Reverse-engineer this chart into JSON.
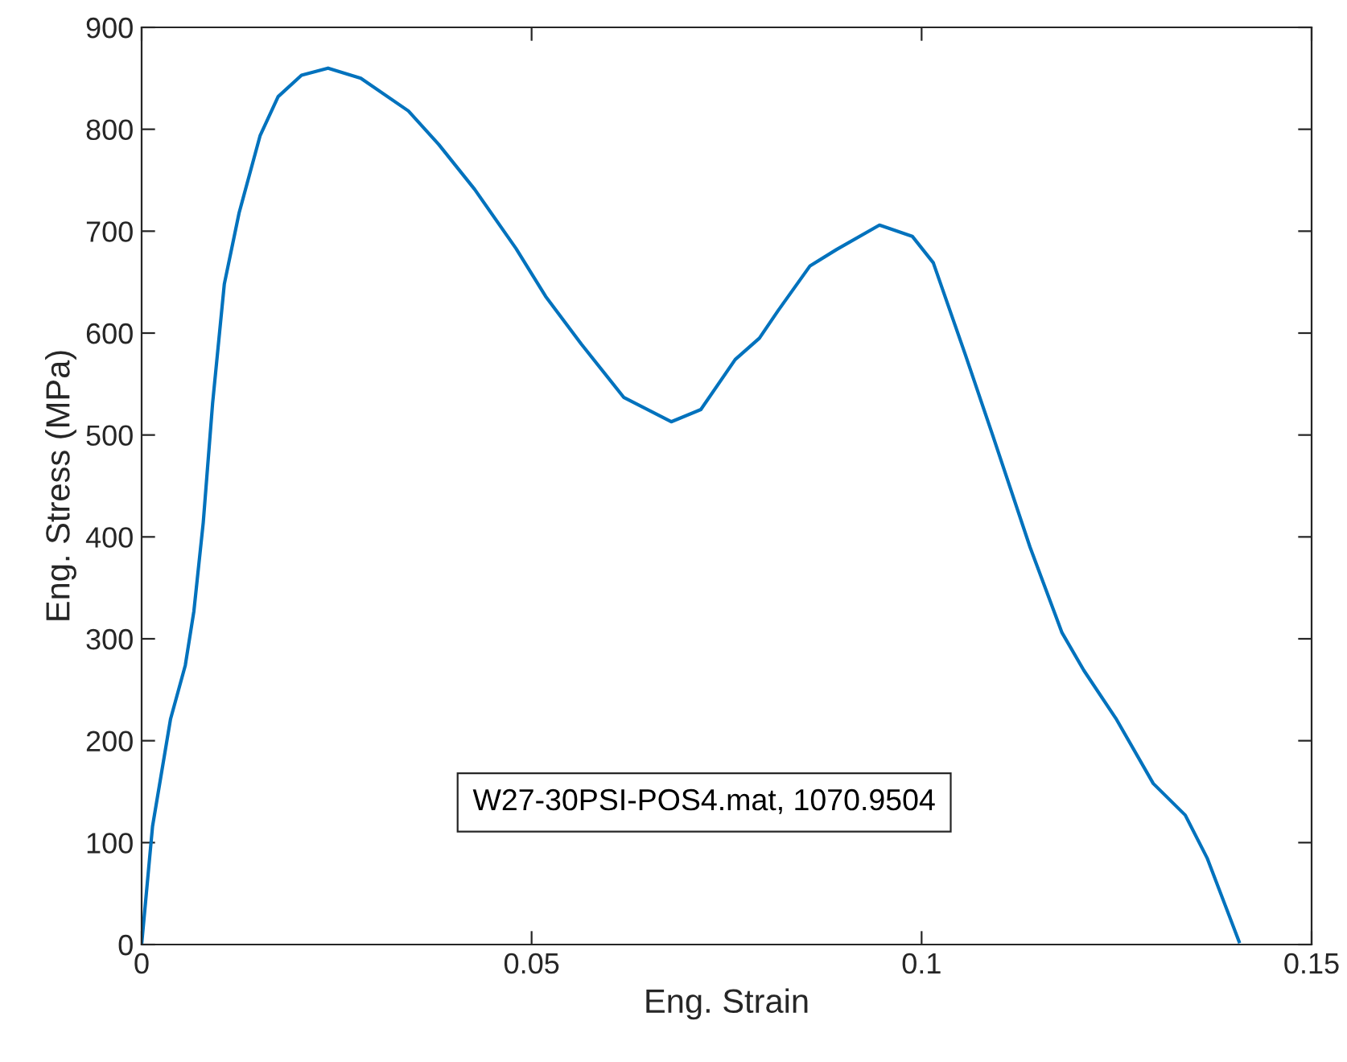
{
  "chart_data": {
    "type": "line",
    "xlabel": "Eng. Strain",
    "ylabel": "Eng. Stress (MPa)",
    "annotations": [
      "W27-30PSI-POS4.mat, 1070.9504"
    ],
    "xlim": [
      0,
      0.15
    ],
    "xticks": [
      0,
      0.05,
      0.1,
      0.15
    ],
    "ylim": [
      0,
      900
    ],
    "yticks": [
      0,
      100,
      200,
      300,
      400,
      500,
      600,
      700,
      800,
      900
    ],
    "grid": false,
    "legend": false,
    "marker": "none",
    "line_style": "solid",
    "series": [
      {
        "color": "#0072bd",
        "x": [
          0,
          0.0014,
          0.0037,
          0.0056,
          0.0067,
          0.0079,
          0.0091,
          0.0106,
          0.0125,
          0.0152,
          0.0175,
          0.0205,
          0.0239,
          0.0281,
          0.0342,
          0.0381,
          0.0427,
          0.048,
          0.0518,
          0.0564,
          0.0618,
          0.0679,
          0.0717,
          0.0761,
          0.0792,
          0.0816,
          0.0857,
          0.0891,
          0.0946,
          0.0988,
          0.1015,
          0.1056,
          0.1091,
          0.1139,
          0.118,
          0.1208,
          0.1249,
          0.1297,
          0.1338,
          0.1366,
          0.1407
        ],
        "values": [
          0,
          116,
          221,
          274,
          327,
          414,
          531,
          648,
          718,
          794,
          832,
          853,
          860,
          850,
          818,
          785,
          741,
          683,
          636,
          589,
          537,
          513,
          525,
          574,
          595,
          622,
          666,
          682,
          706,
          695,
          669,
          579,
          500,
          390,
          306,
          269,
          222,
          158,
          127,
          85,
          3
        ]
      }
    ]
  }
}
